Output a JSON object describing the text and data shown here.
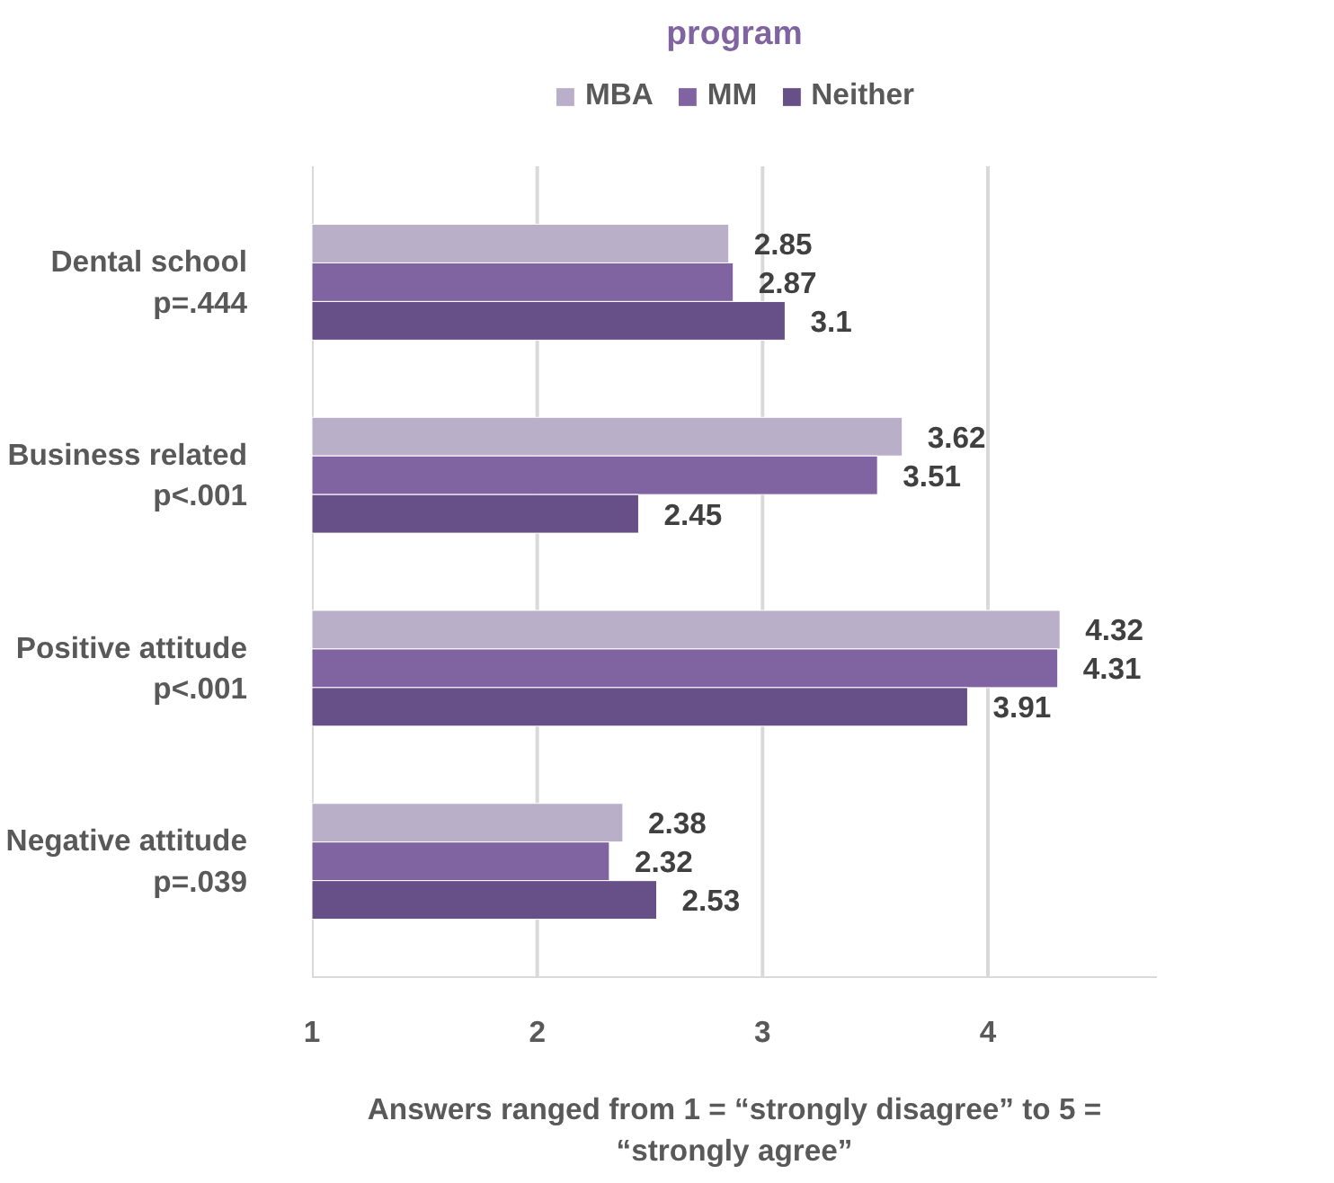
{
  "chart_data": {
    "type": "bar",
    "orientation": "horizontal",
    "title": "program",
    "xlabel": "Answers ranged from 1 = “strongly disagree” to 5 = “strongly agree”",
    "categories": [
      "Dental school\np=.444",
      "Business related\np<.001",
      "Positive attitude\np<.001",
      "Negative attitude\np=.039"
    ],
    "series": [
      {
        "name": "MBA",
        "color": "#b9afc9",
        "values": [
          2.85,
          3.62,
          4.32,
          2.38
        ]
      },
      {
        "name": "MM",
        "color": "#8064a2",
        "values": [
          2.87,
          3.51,
          4.31,
          2.32
        ]
      },
      {
        "name": "Neither",
        "color": "#674f87",
        "values": [
          3.1,
          2.45,
          3.91,
          2.53
        ]
      }
    ],
    "xlim": [
      1,
      4.75
    ],
    "xticks": [
      1,
      2,
      3,
      4
    ],
    "grid": "x",
    "legend": "top",
    "data_labels": true
  }
}
